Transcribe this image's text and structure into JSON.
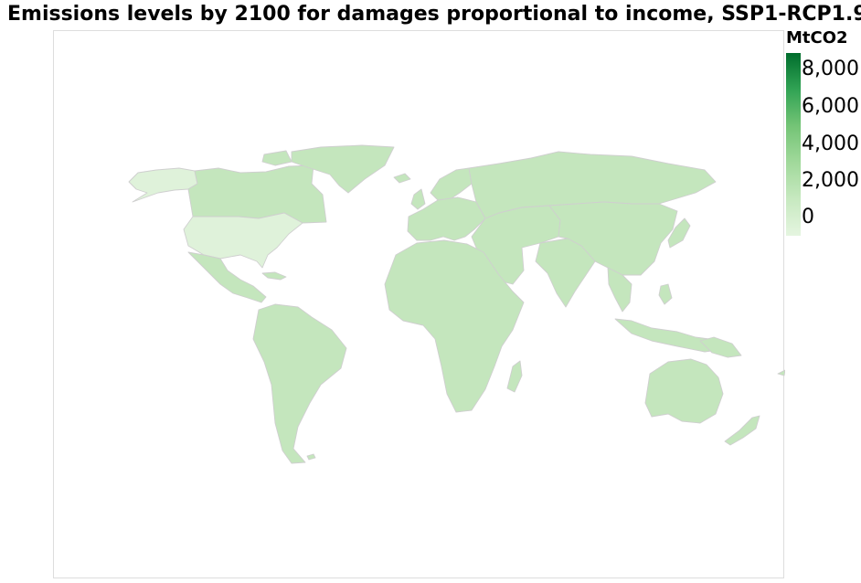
{
  "title": "Emissions levels by 2100 for damages proportional to income, SSP1-RCP1.9",
  "legend": {
    "unit": "MtCO2",
    "ticks": [
      "8,000",
      "6,000",
      "4,000",
      "2,000",
      "0"
    ],
    "colors": [
      "#e5f5e0",
      "#c7e9c0",
      "#a1d99b",
      "#74c476",
      "#31a354",
      "#006d2c"
    ]
  },
  "map": {
    "country_fill": "#c4e6bd",
    "low_fill": "#dff2da",
    "border_color": "#cfcfcf"
  }
}
